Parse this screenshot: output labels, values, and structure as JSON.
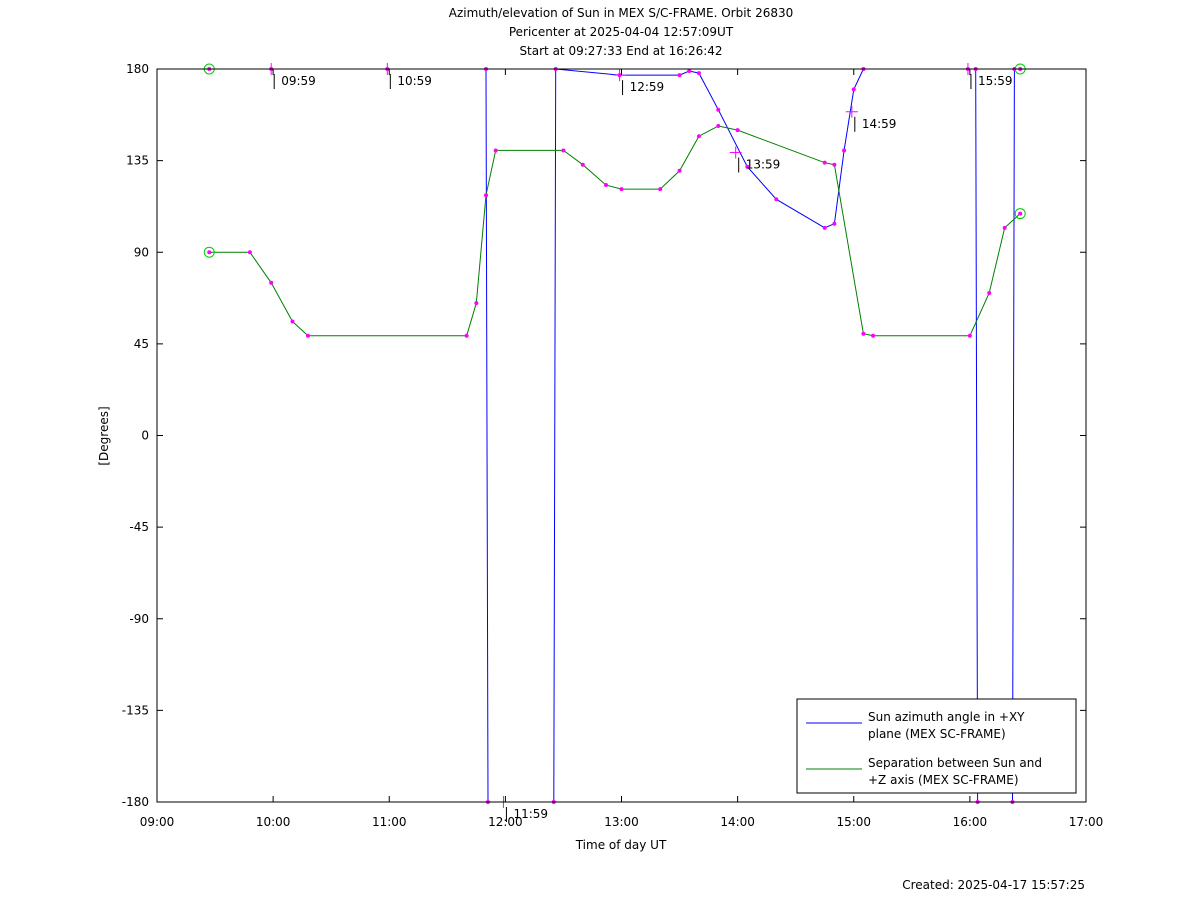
{
  "chart_data": {
    "type": "line",
    "title": [
      "Azimuth/elevation of Sun in MEX S/C-FRAME.  Orbit 26830",
      "Pericenter at 2025-04-04 12:57:09UT",
      "Start at 09:27:33 End at 16:26:42"
    ],
    "xlabel": "Time of day UT",
    "ylabel": "[Degrees]",
    "xlim": [
      "09:00",
      "17:00"
    ],
    "ylim": [
      -180,
      180
    ],
    "x_ticks": [
      "09:00",
      "10:00",
      "11:00",
      "12:00",
      "13:00",
      "14:00",
      "15:00",
      "16:00",
      "17:00"
    ],
    "y_ticks": [
      "180",
      "135",
      "90",
      "45",
      "0",
      "-45",
      "-90",
      "-135",
      "-180"
    ],
    "grid": false,
    "legend_position": "bottom-right",
    "series": [
      {
        "name": "Sun azimuth angle in +XY plane (MEX SC-FRAME)",
        "legend_lines": [
          "Sun azimuth angle in +XY",
          "plane (MEX SC-FRAME)"
        ],
        "color": "#0000ff",
        "points": [
          [
            "09:27",
            180
          ],
          [
            "09:59",
            180
          ],
          [
            "10:59",
            180
          ],
          [
            "11:50",
            180
          ],
          [
            "11:51",
            -180
          ],
          [
            "12:25",
            -180
          ],
          [
            "12:26",
            180
          ],
          [
            "12:59",
            177
          ],
          [
            "13:30",
            177
          ],
          [
            "13:35",
            179
          ],
          [
            "13:40",
            178
          ],
          [
            "13:50",
            160
          ],
          [
            "14:05",
            132
          ],
          [
            "14:20",
            116
          ],
          [
            "14:45",
            102
          ],
          [
            "14:50",
            104
          ],
          [
            "14:55",
            140
          ],
          [
            "15:00",
            170
          ],
          [
            "15:05",
            180
          ],
          [
            "15:59",
            180
          ],
          [
            "16:03",
            180
          ],
          [
            "16:04",
            -180
          ],
          [
            "16:22",
            -180
          ],
          [
            "16:23",
            180
          ],
          [
            "16:26",
            180
          ]
        ]
      },
      {
        "name": "Separation between Sun and +Z axis (MEX SC-FRAME)",
        "legend_lines": [
          "Separation between Sun and",
          "+Z axis (MEX SC-FRAME)"
        ],
        "color": "#008000",
        "points": [
          [
            "09:27",
            90
          ],
          [
            "09:48",
            90
          ],
          [
            "09:59",
            75
          ],
          [
            "10:10",
            56
          ],
          [
            "10:18",
            49
          ],
          [
            "11:40",
            49
          ],
          [
            "11:45",
            65
          ],
          [
            "11:50",
            118
          ],
          [
            "11:55",
            140
          ],
          [
            "12:30",
            140
          ],
          [
            "12:40",
            133
          ],
          [
            "12:52",
            123
          ],
          [
            "13:00",
            121
          ],
          [
            "13:20",
            121
          ],
          [
            "13:30",
            130
          ],
          [
            "13:40",
            147
          ],
          [
            "13:50",
            152
          ],
          [
            "14:00",
            150
          ],
          [
            "14:45",
            134
          ],
          [
            "14:50",
            133
          ],
          [
            "15:05",
            50
          ],
          [
            "15:10",
            49
          ],
          [
            "16:00",
            49
          ],
          [
            "16:10",
            70
          ],
          [
            "16:18",
            102
          ],
          [
            "16:26",
            109
          ]
        ]
      }
    ],
    "time_labels": [
      {
        "text": "09:59",
        "x": "09:59",
        "y": 180
      },
      {
        "text": "10:59",
        "x": "10:59",
        "y": 180
      },
      {
        "text": "11:59",
        "x": "11:59",
        "y": -180
      },
      {
        "text": "12:59",
        "x": "12:59",
        "y": 177
      },
      {
        "text": "13:59",
        "x": "13:59",
        "y": 139
      },
      {
        "text": "14:59",
        "x": "14:59",
        "y": 159
      },
      {
        "text": "15:59",
        "x": "15:59",
        "y": 180
      }
    ]
  },
  "footer": {
    "created": "Created: 2025-04-17 15:57:25"
  }
}
